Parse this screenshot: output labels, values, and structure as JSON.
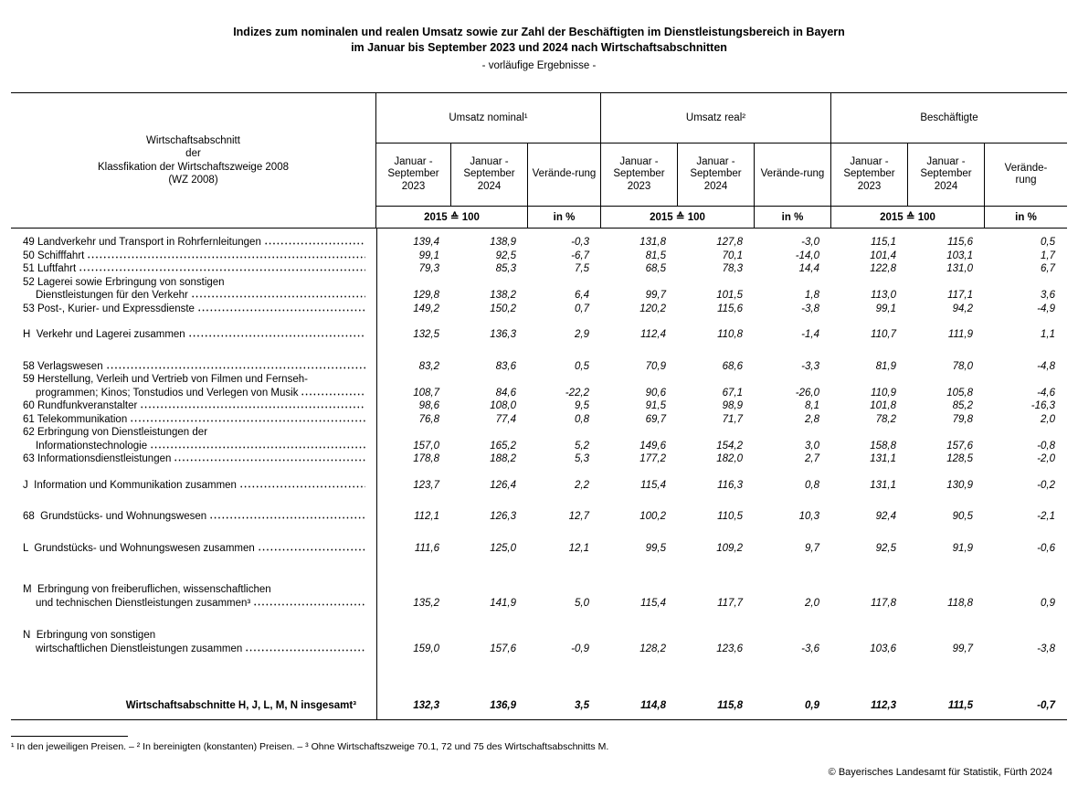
{
  "colors": {
    "background": "#ffffff",
    "text": "#000000",
    "rule": "#000000"
  },
  "title": {
    "line1": "Indizes zum nominalen und realen Umsatz sowie zur Zahl der Beschäftigten im Dienstleistungsbereich in Bayern",
    "line2": "im Januar bis September 2023 und 2024 nach Wirtschaftsabschnitten",
    "subtitle": "- vorläufige Ergebnisse -"
  },
  "table": {
    "row_header": "Wirtschaftsabschnitt\nder\nKlassfikation der Wirtschaftszweige 2008\n(WZ 2008)",
    "groups": [
      {
        "label": "Umsatz nominal¹",
        "periods": [
          "Januar -\nSeptember\n2023",
          "Januar -\nSeptember\n2024",
          "Verände-rung"
        ],
        "units": [
          "2015 ≙ 100",
          "in %"
        ]
      },
      {
        "label": "Umsatz real²",
        "periods": [
          "Januar -\nSeptember\n2023",
          "Januar -\nSeptember\n2024",
          "Verände-rung"
        ],
        "units": [
          "2015 ≙ 100",
          "in %"
        ]
      },
      {
        "label": "Beschäftigte",
        "periods": [
          "Januar -\nSeptember\n2023",
          "Januar -\nSeptember\n2024",
          "Verände-\nrung"
        ],
        "units": [
          "2015 ≙ 100",
          "in %"
        ]
      }
    ],
    "rows": [
      {
        "label": "49 Landverkehr und Transport in Rohrfernleitungen",
        "values": [
          "139,4",
          "138,9",
          "-0,3",
          "131,8",
          "127,8",
          "-3,0",
          "115,1",
          "115,6",
          "0,5"
        ]
      },
      {
        "label": "50 Schifffahrt",
        "values": [
          "99,1",
          "92,5",
          "-6,7",
          "81,5",
          "70,1",
          "-14,0",
          "101,4",
          "103,1",
          "1,7"
        ]
      },
      {
        "label": "51 Luftfahrt",
        "values": [
          "79,3",
          "85,3",
          "7,5",
          "68,5",
          "78,3",
          "14,4",
          "122,8",
          "131,0",
          "6,7"
        ]
      },
      {
        "pre": "52 Lagerei sowie Erbringung von sonstigen",
        "indent": true,
        "label": "Dienstleistungen für den Verkehr",
        "values": [
          "129,8",
          "138,2",
          "6,4",
          "99,7",
          "101,5",
          "1,8",
          "113,0",
          "117,1",
          "3,6"
        ]
      },
      {
        "label": "53 Post-, Kurier- und Expressdienste",
        "values": [
          "149,2",
          "150,2",
          "0,7",
          "120,2",
          "115,6",
          "-3,8",
          "99,1",
          "94,2",
          "-4,9"
        ]
      },
      {
        "label": "H  Verkehr und Lagerei zusammen",
        "gap": 14,
        "values": [
          "132,5",
          "136,3",
          "2,9",
          "112,4",
          "110,8",
          "-1,4",
          "110,7",
          "111,9",
          "1,1"
        ]
      },
      {
        "label": "58 Verlagswesen",
        "gap": 20,
        "values": [
          "83,2",
          "83,6",
          "0,5",
          "70,9",
          "68,6",
          "-3,3",
          "81,9",
          "78,0",
          "-4,8"
        ]
      },
      {
        "pre": "59 Herstellung, Verleih und Vertrieb von Filmen und Fernseh-",
        "indent": true,
        "label": "programmen; Kinos; Tonstudios und Verlegen von Musik",
        "values": [
          "108,7",
          "84,6",
          "-22,2",
          "90,6",
          "67,1",
          "-26,0",
          "110,9",
          "105,8",
          "-4,6"
        ]
      },
      {
        "label": "60 Rundfunkveranstalter",
        "values": [
          "98,6",
          "108,0",
          "9,5",
          "91,5",
          "98,9",
          "8,1",
          "101,8",
          "85,2",
          "-16,3"
        ]
      },
      {
        "label": "61 Telekommunikation",
        "values": [
          "76,8",
          "77,4",
          "0,8",
          "69,7",
          "71,7",
          "2,8",
          "78,2",
          "79,8",
          "2,0"
        ]
      },
      {
        "pre": "62 Erbringung von Dienstleistungen der",
        "indent": true,
        "label": "Informationstechnologie",
        "values": [
          "157,0",
          "165,2",
          "5,2",
          "149,6",
          "154,2",
          "3,0",
          "158,8",
          "157,6",
          "-0,8"
        ]
      },
      {
        "label": "63 Informationsdienstleistungen",
        "values": [
          "178,8",
          "188,2",
          "5,3",
          "177,2",
          "182,0",
          "2,7",
          "131,1",
          "128,5",
          "-2,0"
        ]
      },
      {
        "label": "J  Information und Kommunikation zusammen",
        "gap": 14,
        "values": [
          "123,7",
          "126,4",
          "2,2",
          "115,4",
          "116,3",
          "0,8",
          "131,1",
          "130,9",
          "-0,2"
        ]
      },
      {
        "label": "68  Grundstücks- und Wohnungswesen",
        "gap": 20,
        "values": [
          "112,1",
          "126,3",
          "12,7",
          "100,2",
          "110,5",
          "10,3",
          "92,4",
          "90,5",
          "-2,1"
        ]
      },
      {
        "label": "L  Grundstücks- und Wohnungswesen zusammen",
        "gap": 20,
        "values": [
          "111,6",
          "125,0",
          "12,1",
          "99,5",
          "109,2",
          "9,7",
          "92,5",
          "91,9",
          "-0,6"
        ]
      },
      {
        "pre": "M  Erbringung von freiberuflichen, wissenschaftlichen",
        "indent": true,
        "gap": 31,
        "label": "und technischen Dienstleistungen zusammen³",
        "values": [
          "135,2",
          "141,9",
          "5,0",
          "115,4",
          "117,7",
          "2,0",
          "117,8",
          "118,8",
          "0,9"
        ]
      },
      {
        "pre": "N  Erbringung von sonstigen",
        "indent": true,
        "gap": 21,
        "label": "wirtschaftlichen Dienstleistungen zusammen",
        "values": [
          "159,0",
          "157,6",
          "-0,9",
          "128,2",
          "123,6",
          "-3,6",
          "103,6",
          "99,7",
          "-3,8"
        ]
      },
      {
        "label": "Wirtschaftsabschnitte H, J, L, M, N insgesamt³",
        "total": true,
        "gap": 48,
        "values": [
          "132,3",
          "136,9",
          "3,5",
          "114,8",
          "115,8",
          "0,9",
          "112,3",
          "111,5",
          "-0,7"
        ]
      }
    ]
  },
  "footnote": "¹ In den jeweiligen Preisen. – ² In bereinigten (konstanten) Preisen. – ³ Ohne Wirtschaftszweige 70.1, 72 und 75 des Wirtschaftsabschnitts M.",
  "copyright": "© Bayerisches Landesamt für Statistik, Fürth 2024"
}
